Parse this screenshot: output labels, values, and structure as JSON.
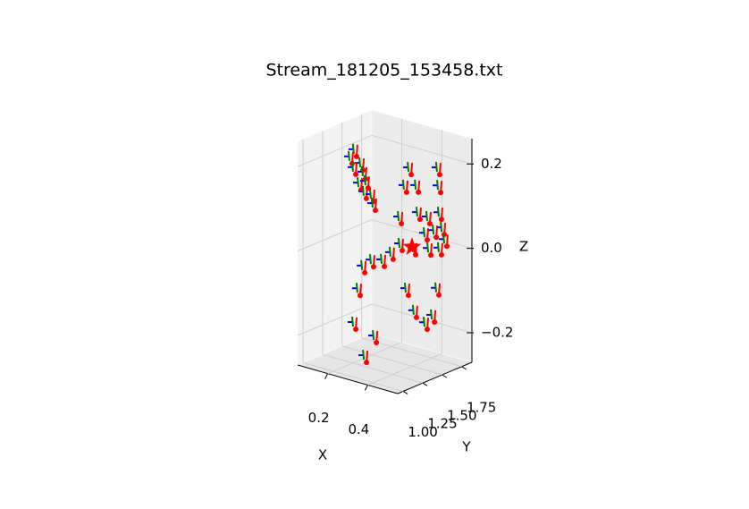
{
  "chart_data": {
    "type": "scatter3d",
    "title": "Stream_181205_153458.txt",
    "xlabel": "X",
    "ylabel": "Y",
    "zlabel": "Z",
    "xlim": [
      0.05,
      0.55
    ],
    "ylim": [
      0.93,
      1.88
    ],
    "zlim": [
      -0.27,
      0.26
    ],
    "xticks": [
      0.2,
      0.4
    ],
    "yticks": [
      {
        "value": 1,
        "label": "1.00"
      },
      {
        "value": 1.25,
        "label": "1.25"
      },
      {
        "value": 1.5,
        "label": "1.50"
      },
      {
        "value": 1.75,
        "label": "1.75"
      }
    ],
    "zticks": [
      {
        "value": -0.2,
        "label": "−0.2"
      },
      {
        "value": 0,
        "label": "0.0"
      },
      0.2
    ],
    "grid": true,
    "colors": [
      "#ff0000",
      "#008000",
      "#0000ff"
    ],
    "x": [
      0.137,
      0.159,
      0.191,
      0.204,
      0.182,
      0.208,
      0.244,
      0.253,
      0.155,
      0.217,
      0.432,
      0.409,
      0.463,
      0.468,
      0.468,
      0.383,
      0.476,
      0.414,
      0.472,
      0.486,
      0.499,
      0.446,
      0.512,
      0.454,
      0.387,
      0.342,
      0.298,
      0.244,
      0.2,
      0.177,
      0.418,
      0.459,
      0.458,
      0.512,
      0.437,
      0.155,
      0.258,
      0.32,
      0.472,
      0.419
    ],
    "y": [
      1.405,
      1.405,
      1.405,
      1.405,
      1.405,
      1.405,
      1.405,
      1.405,
      1.405,
      1.405,
      1.405,
      1.405,
      1.69,
      1.69,
      1.405,
      1.405,
      1.405,
      1.69,
      1.69,
      1.69,
      1.69,
      1.69,
      1.405,
      1.405,
      1.405,
      1.405,
      1.405,
      1.405,
      1.405,
      1.405,
      1.405,
      1.69,
      1.405,
      1.405,
      1.69,
      1.405,
      1.405,
      1.12,
      1.69,
      1.69
    ],
    "z": [
      0.182,
      0.202,
      0.174,
      0.155,
      0.126,
      0.109,
      0.107,
      0.087,
      0.159,
      0.135,
      0.196,
      0.151,
      0.178,
      0.136,
      0.159,
      0.073,
      0.096,
      0.055,
      0.073,
      0.039,
      0.013,
      0.027,
      0.052,
      0.009,
      0.01,
      -0.017,
      -0.04,
      -0.048,
      -0.068,
      -0.125,
      -0.092,
      -0.108,
      -0.139,
      -0.16,
      -0.175,
      -0.208,
      -0.226,
      -0.242,
      -0.011,
      -0.019
    ],
    "star": {
      "x": 0.436,
      "y": 1.405,
      "z": 0.025
    }
  }
}
